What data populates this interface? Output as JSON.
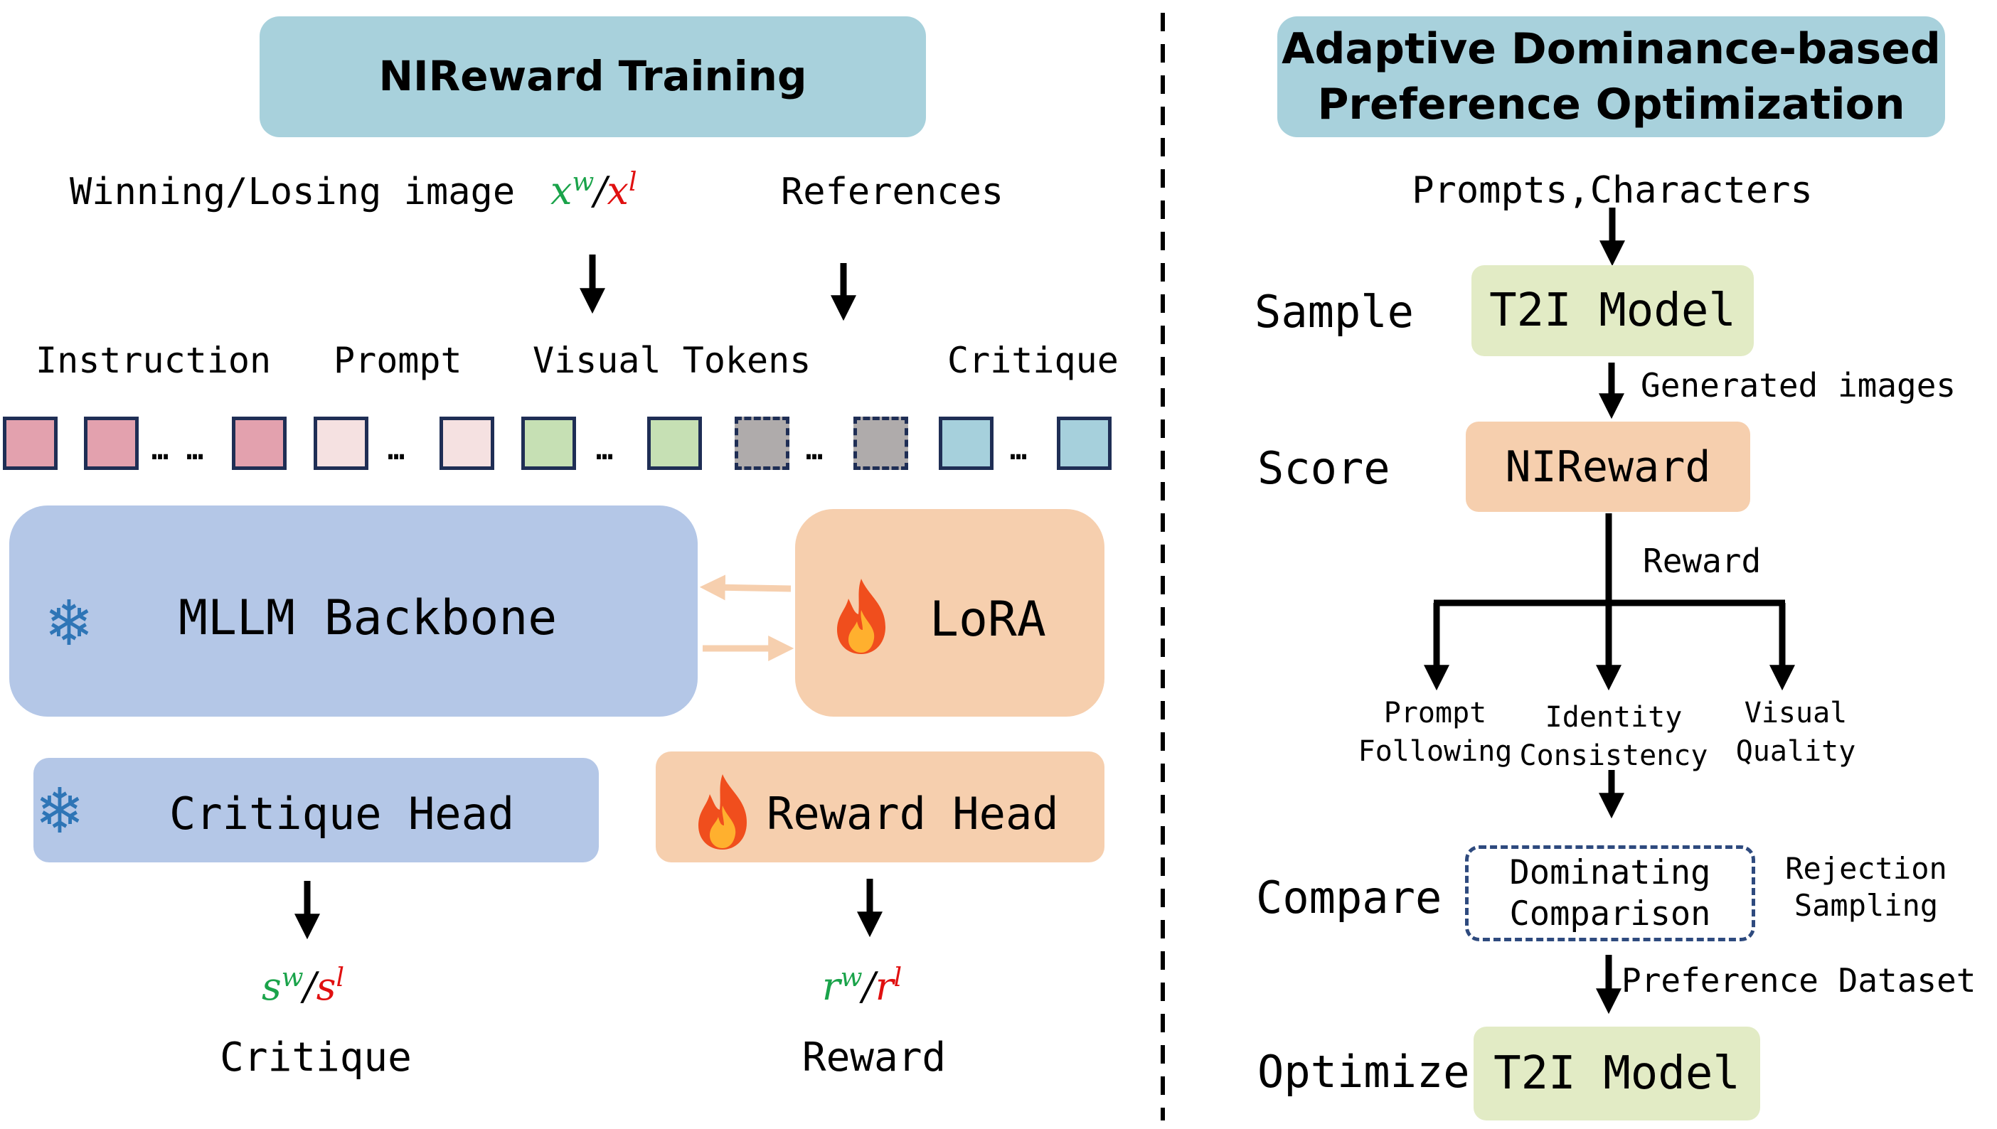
{
  "left": {
    "title": "NIReward Training",
    "inputs": {
      "winning_losing": "Winning/Losing image",
      "xw": "x",
      "xw_sup": "w",
      "slash": "/",
      "xl": "x",
      "xl_sup": "l",
      "references": "References"
    },
    "token_labels": [
      "Instruction",
      "Prompt",
      "Visual Tokens",
      "Critique"
    ],
    "token_colors": {
      "instruction": "#e3a1ae",
      "prompt": "#f5e1e1",
      "visual": "#c6e0b4",
      "reference": "#afabab",
      "critique": "#a6d0dc"
    },
    "ellipsis": "…",
    "backbone": "MLLM Backbone",
    "lora": "LoRA",
    "critique_head": "Critique Head",
    "reward_head": "Reward Head",
    "critique_out": {
      "sw": "s",
      "sw_sup": "w",
      "slash": "/",
      "sl": "s",
      "sl_sup": "l",
      "label": "Critique"
    },
    "reward_out": {
      "rw": "r",
      "rw_sup": "w",
      "slash": "/",
      "rl": "r",
      "rl_sup": "l",
      "label": "Reward"
    }
  },
  "right": {
    "title_line1": "Adaptive Dominance-based",
    "title_line2": "Preference Optimization",
    "input": "Prompts,Characters",
    "stages": {
      "sample": "Sample",
      "score": "Score",
      "compare": "Compare",
      "optimize": "Optimize"
    },
    "t2i_model": "T2I Model",
    "generated_images": "Generated images",
    "nireward": "NIReward",
    "reward": "Reward",
    "dims": [
      {
        "line1": "Prompt",
        "line2": "Following"
      },
      {
        "line1": "Identity",
        "line2": "Consistency"
      },
      {
        "line1": "Visual",
        "line2": "Quality"
      }
    ],
    "dominating_line1": "Dominating",
    "dominating_line2": "Comparison",
    "rejection_line1": "Rejection",
    "rejection_line2": "Sampling",
    "preference_dataset": "Preference Dataset",
    "t2i_model_final": "T2I Model"
  }
}
